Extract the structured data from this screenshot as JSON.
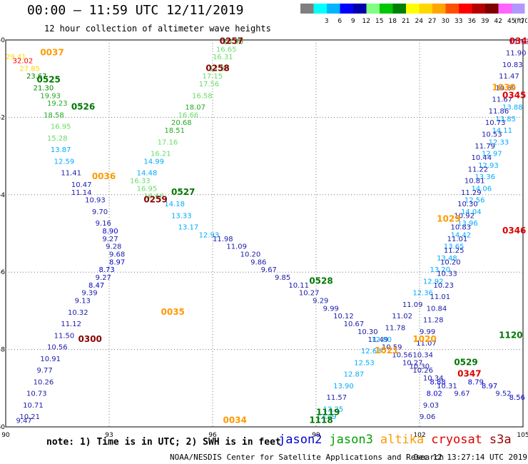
{
  "header": {
    "title": "00:00 – 11:59 UTC 12/11/2019",
    "subtitle": "12 hour collection of altimeter wave heights"
  },
  "color_scale": {
    "unit": "(ft)",
    "bins": [
      {
        "label": "",
        "color": "#7f7f7f"
      },
      {
        "label": "3",
        "color": "#00ffff"
      },
      {
        "label": "6",
        "color": "#00b4ff"
      },
      {
        "label": "9",
        "color": "#0000ff"
      },
      {
        "label": "12",
        "color": "#0000aa"
      },
      {
        "label": "15",
        "color": "#80ff80"
      },
      {
        "label": "18",
        "color": "#00c800"
      },
      {
        "label": "21",
        "color": "#008000"
      },
      {
        "label": "24",
        "color": "#ffff00"
      },
      {
        "label": "27",
        "color": "#ffd700"
      },
      {
        "label": "30",
        "color": "#ffa500"
      },
      {
        "label": "33",
        "color": "#ff5000"
      },
      {
        "label": "36",
        "color": "#ff0000"
      },
      {
        "label": "39",
        "color": "#b40000"
      },
      {
        "label": "42",
        "color": "#800000"
      },
      {
        "label": "45",
        "color": "#ff64ff"
      },
      {
        "label": "70",
        "color": "#b496ff"
      }
    ]
  },
  "footer": {
    "note": "note: 1) Time is in UTC; 2) SWH is in feet",
    "credit": "NOAA/NESDIS Center for Satellite Applications and Research",
    "stamp": "Dec 12 13:27:14 UTC 2019",
    "legend": [
      {
        "name": "jason2",
        "color": "#0000cc"
      },
      {
        "name": "jason3",
        "color": "#00a000"
      },
      {
        "name": "altika",
        "color": "#ff9900"
      },
      {
        "name": "cryosat",
        "color": "#dd0000"
      },
      {
        "name": "s3a",
        "color": "#990000"
      }
    ]
  },
  "chart_data": {
    "type": "scatter",
    "xlim": [
      90,
      105
    ],
    "ylim": [
      -60,
      -50
    ],
    "x_ticks": [
      90,
      93,
      96,
      99,
      102,
      105
    ],
    "y_ticks": [
      -50,
      -52,
      -54,
      -56,
      -58,
      -60
    ],
    "grid": true,
    "value_colors": {
      "lt9": "#0000cc",
      "lt12": "#1a1aaa",
      "lt15": "#00aaff",
      "lt18": "#66dd66",
      "lt21": "#22aa22",
      "lt24": "#008800",
      "lt27": "#ffee00",
      "lt30": "#ffd700"
    },
    "time_labels": [
      {
        "text": "0037",
        "lon": 91.0,
        "lat": -50.4,
        "color": "#ff9900"
      },
      {
        "text": "0525",
        "lon": 90.9,
        "lat": -51.1,
        "color": "#007700"
      },
      {
        "text": "0526",
        "lon": 91.9,
        "lat": -51.8,
        "color": "#007700"
      },
      {
        "text": "0036",
        "lon": 92.5,
        "lat": -53.6,
        "color": "#ff9900"
      },
      {
        "text": "0259",
        "lon": 94.0,
        "lat": -54.2,
        "color": "#880000"
      },
      {
        "text": "0527",
        "lon": 94.8,
        "lat": -54.0,
        "color": "#007700"
      },
      {
        "text": "0257",
        "lon": 96.2,
        "lat": -50.1,
        "color": "#880000"
      },
      {
        "text": "0258",
        "lon": 95.8,
        "lat": -50.8,
        "color": "#880000"
      },
      {
        "text": "0035",
        "lon": 94.5,
        "lat": -57.1,
        "color": "#ff9900"
      },
      {
        "text": "0300",
        "lon": 92.1,
        "lat": -57.8,
        "color": "#880000"
      },
      {
        "text": "0034",
        "lon": 96.3,
        "lat": -59.9,
        "color": "#ff9900"
      },
      {
        "text": "0528",
        "lon": 98.8,
        "lat": -56.3,
        "color": "#007700"
      },
      {
        "text": "1021",
        "lon": 100.7,
        "lat": -58.1,
        "color": "#ff9900"
      },
      {
        "text": "1020",
        "lon": 101.8,
        "lat": -57.8,
        "color": "#ff9900"
      },
      {
        "text": "1119",
        "lon": 99.0,
        "lat": -59.7,
        "color": "#007700"
      },
      {
        "text": "1118",
        "lon": 98.8,
        "lat": -59.9,
        "color": "#007700"
      },
      {
        "text": "0529",
        "lon": 103.0,
        "lat": -58.4,
        "color": "#007700"
      },
      {
        "text": "0347",
        "lon": 103.1,
        "lat": -58.7,
        "color": "#dd0000"
      },
      {
        "text": "1120",
        "lon": 104.3,
        "lat": -57.7,
        "color": "#007700"
      },
      {
        "text": "0346",
        "lon": 104.4,
        "lat": -55.0,
        "color": "#dd0000"
      },
      {
        "text": "1029",
        "lon": 102.5,
        "lat": -54.7,
        "color": "#ff9900"
      },
      {
        "text": "1030",
        "lon": 104.1,
        "lat": -51.3,
        "color": "#ff9900"
      },
      {
        "text": "0345",
        "lon": 104.4,
        "lat": -51.5,
        "color": "#dd0000"
      },
      {
        "text": "0344",
        "lon": 104.6,
        "lat": -50.1,
        "color": "#dd0000"
      }
    ],
    "series": [
      {
        "name": "track-nw-to-se-jason3",
        "points": [
          [
            90.0,
            -50.5,
            29.41
          ],
          [
            90.2,
            -50.6,
            32.02
          ],
          [
            90.4,
            -50.8,
            27.85
          ],
          [
            90.6,
            -51.0,
            23.67
          ],
          [
            90.8,
            -51.3,
            21.3
          ],
          [
            91.0,
            -51.5,
            19.93
          ],
          [
            91.2,
            -51.7,
            19.23
          ],
          [
            91.1,
            -52.0,
            18.58
          ],
          [
            91.3,
            -52.3,
            16.95
          ],
          [
            91.2,
            -52.6,
            15.28
          ],
          [
            91.3,
            -52.9,
            13.87
          ],
          [
            91.4,
            -53.2,
            12.59
          ],
          [
            91.6,
            -53.5,
            11.41
          ],
          [
            91.9,
            -53.8,
            10.47
          ],
          [
            91.9,
            -54.0,
            11.14
          ],
          [
            92.3,
            -54.2,
            10.93
          ],
          [
            92.5,
            -54.5,
            9.7
          ],
          [
            92.6,
            -54.8,
            9.16
          ],
          [
            92.8,
            -55.0,
            8.9
          ],
          [
            92.8,
            -55.2,
            9.27
          ],
          [
            92.9,
            -55.4,
            9.28
          ],
          [
            93.0,
            -55.6,
            9.68
          ],
          [
            93.0,
            -55.8,
            8.97
          ],
          [
            92.7,
            -56.0,
            8.73
          ],
          [
            92.6,
            -56.2,
            9.27
          ],
          [
            92.4,
            -56.4,
            8.47
          ],
          [
            92.2,
            -56.6,
            9.39
          ],
          [
            92.0,
            -56.8,
            9.13
          ],
          [
            91.8,
            -57.1,
            10.32
          ],
          [
            91.6,
            -57.4,
            11.12
          ],
          [
            91.4,
            -57.7,
            11.5
          ],
          [
            91.2,
            -58.0,
            10.56
          ],
          [
            91.0,
            -58.3,
            10.91
          ],
          [
            90.9,
            -58.6,
            9.77
          ],
          [
            90.8,
            -58.9,
            10.26
          ],
          [
            90.6,
            -59.2,
            10.73
          ],
          [
            90.5,
            -59.5,
            10.71
          ],
          [
            90.4,
            -59.8,
            10.21
          ],
          [
            90.3,
            -59.9,
            9.47
          ]
        ]
      },
      {
        "name": "track-ne-to-sw",
        "points": [
          [
            96.3,
            -50.1,
            18.9
          ],
          [
            96.1,
            -50.3,
            16.65
          ],
          [
            96.0,
            -50.5,
            16.31
          ],
          [
            95.9,
            -50.8,
            17.3
          ],
          [
            95.7,
            -51.0,
            17.15
          ],
          [
            95.6,
            -51.2,
            17.56
          ],
          [
            95.4,
            -51.5,
            16.58
          ],
          [
            95.2,
            -51.8,
            18.07
          ],
          [
            95.0,
            -52.0,
            16.66
          ],
          [
            94.8,
            -52.2,
            20.68
          ],
          [
            94.6,
            -52.4,
            18.51
          ],
          [
            94.4,
            -52.7,
            17.16
          ],
          [
            94.2,
            -53.0,
            16.21
          ],
          [
            94.0,
            -53.2,
            14.99
          ],
          [
            93.8,
            -53.5,
            14.48
          ],
          [
            93.6,
            -53.7,
            16.33
          ],
          [
            93.8,
            -53.9,
            16.95
          ],
          [
            94.0,
            -54.1,
            16.66
          ],
          [
            94.6,
            -54.3,
            14.18
          ],
          [
            94.8,
            -54.6,
            13.33
          ],
          [
            95.0,
            -54.9,
            13.17
          ],
          [
            95.6,
            -55.1,
            12.93
          ]
        ]
      },
      {
        "name": "track-mid-se",
        "points": [
          [
            96.0,
            -55.2,
            11.98
          ],
          [
            96.4,
            -55.4,
            11.09
          ],
          [
            96.8,
            -55.6,
            10.2
          ],
          [
            97.1,
            -55.8,
            9.86
          ],
          [
            97.4,
            -56.0,
            9.67
          ],
          [
            97.8,
            -56.2,
            9.85
          ],
          [
            98.2,
            -56.4,
            10.11
          ],
          [
            98.5,
            -56.6,
            10.27
          ],
          [
            98.9,
            -56.8,
            9.29
          ],
          [
            99.2,
            -57.0,
            9.99
          ],
          [
            99.5,
            -57.2,
            10.12
          ],
          [
            99.8,
            -57.4,
            10.67
          ],
          [
            100.2,
            -57.6,
            10.3
          ],
          [
            100.5,
            -57.8,
            11.49
          ],
          [
            100.9,
            -58.0,
            10.59
          ],
          [
            101.2,
            -58.2,
            10.56
          ],
          [
            101.5,
            -58.4,
            10.27
          ],
          [
            101.8,
            -58.6,
            10.26
          ],
          [
            102.1,
            -58.8,
            10.34
          ],
          [
            102.5,
            -59.0,
            10.31
          ],
          [
            103.0,
            -59.2,
            9.67
          ]
        ]
      },
      {
        "name": "track-jason3-se",
        "points": [
          [
            99.0,
            -59.8,
            12.09
          ],
          [
            99.2,
            -59.6,
            12.25
          ],
          [
            99.3,
            -59.3,
            11.57
          ],
          [
            99.5,
            -59.0,
            13.9
          ],
          [
            99.8,
            -58.7,
            12.87
          ],
          [
            100.1,
            -58.4,
            12.53
          ],
          [
            100.3,
            -58.1,
            12.68
          ],
          [
            100.6,
            -57.8,
            12.8
          ],
          [
            101.0,
            -57.5,
            11.78
          ],
          [
            101.2,
            -57.2,
            11.02
          ],
          [
            101.5,
            -56.9,
            11.09
          ],
          [
            101.8,
            -56.6,
            12.36
          ],
          [
            102.1,
            -56.3,
            12.92
          ],
          [
            102.3,
            -56.0,
            13.2
          ],
          [
            102.5,
            -55.7,
            13.48
          ],
          [
            102.7,
            -55.4,
            13.65
          ],
          [
            102.9,
            -55.1,
            14.42
          ],
          [
            103.1,
            -54.8,
            13.96
          ],
          [
            103.2,
            -54.5,
            14.04
          ],
          [
            103.3,
            -54.2,
            12.56
          ],
          [
            103.5,
            -53.9,
            14.06
          ],
          [
            103.6,
            -53.6,
            13.36
          ],
          [
            103.7,
            -53.3,
            12.93
          ],
          [
            103.8,
            -53.0,
            12.97
          ],
          [
            104.0,
            -52.7,
            12.33
          ],
          [
            104.1,
            -52.4,
            14.11
          ],
          [
            104.2,
            -52.1,
            13.85
          ],
          [
            104.4,
            -51.8,
            13.88
          ]
        ]
      },
      {
        "name": "track-jason2-north",
        "points": [
          [
            104.6,
            -50.1,
            11.13
          ],
          [
            104.5,
            -50.4,
            11.9
          ],
          [
            104.4,
            -50.7,
            10.83
          ],
          [
            104.3,
            -51.0,
            11.47
          ],
          [
            104.2,
            -51.3,
            10.69
          ],
          [
            104.1,
            -51.6,
            11.67
          ],
          [
            104.0,
            -51.9,
            11.86
          ],
          [
            103.9,
            -52.2,
            10.73
          ],
          [
            103.8,
            -52.5,
            10.53
          ],
          [
            103.6,
            -52.8,
            11.79
          ],
          [
            103.5,
            -53.1,
            10.44
          ],
          [
            103.4,
            -53.4,
            11.22
          ],
          [
            103.3,
            -53.7,
            10.81
          ],
          [
            103.2,
            -54.0,
            11.29
          ],
          [
            103.1,
            -54.3,
            10.3
          ],
          [
            103.0,
            -54.6,
            10.92
          ],
          [
            102.9,
            -54.9,
            10.83
          ],
          [
            102.8,
            -55.2,
            11.01
          ],
          [
            102.7,
            -55.5,
            11.25
          ],
          [
            102.6,
            -55.8,
            10.2
          ],
          [
            102.5,
            -56.1,
            10.33
          ],
          [
            102.4,
            -56.4,
            10.23
          ],
          [
            102.3,
            -56.7,
            11.01
          ],
          [
            102.2,
            -57.0,
            10.84
          ],
          [
            102.1,
            -57.3,
            11.28
          ],
          [
            102.0,
            -57.6,
            9.99
          ],
          [
            101.9,
            -57.9,
            11.07
          ],
          [
            101.8,
            -58.2,
            10.34
          ],
          [
            101.7,
            -58.5,
            10.3
          ]
        ]
      },
      {
        "name": "track-jason2-south",
        "points": [
          [
            102.3,
            -58.9,
            8.88
          ],
          [
            102.2,
            -59.2,
            8.02
          ],
          [
            102.1,
            -59.5,
            9.03
          ],
          [
            102.0,
            -59.8,
            9.06
          ],
          [
            103.4,
            -58.9,
            8.79
          ],
          [
            103.8,
            -59.0,
            8.97
          ],
          [
            104.2,
            -59.2,
            9.52
          ],
          [
            104.6,
            -59.3,
            8.56
          ]
        ]
      }
    ]
  }
}
